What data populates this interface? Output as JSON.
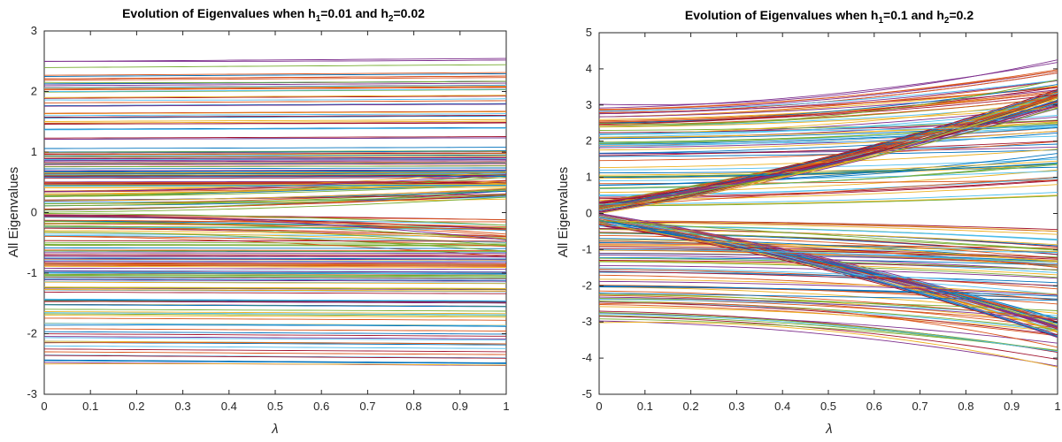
{
  "chart_data": [
    {
      "type": "line",
      "title_parts": {
        "pre": "Evolution of Eigenvalues when h",
        "sub1": "1",
        "mid": "=0.01 and h",
        "sub2": "2",
        "post": "=0.02"
      },
      "xlabel": "λ",
      "ylabel": "All Eigenvalues",
      "xlim": [
        0,
        1
      ],
      "ylim": [
        -3,
        3
      ],
      "xticks": [
        0,
        0.1,
        0.2,
        0.3,
        0.4,
        0.5,
        0.6,
        0.7,
        0.8,
        0.9,
        1
      ],
      "yticks": [
        -3,
        -2,
        -1,
        0,
        1,
        2,
        3
      ],
      "grid": false,
      "legend": "none",
      "x": [
        0,
        0.5,
        1
      ],
      "series_description": "~200 nearly horizontal eigenvalue curves distributed between -2.5 and 2.5, densest between -1 and 1",
      "sample_series": [
        {
          "values": [
            2.5,
            2.5,
            2.52
          ]
        },
        {
          "values": [
            2.15,
            2.15,
            2.17
          ]
        },
        {
          "values": [
            1.86,
            1.86,
            1.88
          ]
        },
        {
          "values": [
            1.47,
            1.47,
            1.48
          ]
        },
        {
          "values": [
            1.0,
            1.0,
            1.02
          ]
        },
        {
          "values": [
            0.5,
            0.5,
            0.52
          ]
        },
        {
          "values": [
            0.2,
            0.25,
            0.4
          ]
        },
        {
          "values": [
            -0.05,
            -0.15,
            -0.45
          ]
        },
        {
          "values": [
            -0.5,
            -0.5,
            -0.52
          ]
        },
        {
          "values": [
            -1.0,
            -1.0,
            -1.02
          ]
        },
        {
          "values": [
            -1.47,
            -1.47,
            -1.48
          ]
        },
        {
          "values": [
            -1.86,
            -1.86,
            -1.88
          ]
        },
        {
          "values": [
            -2.15,
            -2.15,
            -2.17
          ]
        },
        {
          "values": [
            -2.5,
            -2.5,
            -2.52
          ]
        }
      ]
    },
    {
      "type": "line",
      "title_parts": {
        "pre": "Evolution of Eigenvalues when h",
        "sub1": "1",
        "mid": "=0.1 and h",
        "sub2": "2",
        "post": "=0.2"
      },
      "xlabel": "λ",
      "ylabel": "All Eigenvalues",
      "xlim": [
        0,
        1
      ],
      "ylim": [
        -5,
        5
      ],
      "xticks": [
        0,
        0.1,
        0.2,
        0.3,
        0.4,
        0.5,
        0.6,
        0.7,
        0.8,
        0.9,
        1
      ],
      "yticks": [
        -5,
        -4,
        -3,
        -2,
        -1,
        0,
        1,
        2,
        3,
        4,
        5
      ],
      "grid": false,
      "legend": "none",
      "x": [
        0,
        0.5,
        1
      ],
      "series_description": "~200 eigenvalue curves symmetric about 0; one family fans out from 0 to about ±3.2, others drift outward from ±(0.2–3.0) to ±(1.0–4.3)",
      "sample_series": [
        {
          "values": [
            3.02,
            3.25,
            4.25
          ]
        },
        {
          "values": [
            2.5,
            2.7,
            3.7
          ]
        },
        {
          "values": [
            2.2,
            2.3,
            2.4
          ]
        },
        {
          "values": [
            1.6,
            1.75,
            2.0
          ]
        },
        {
          "values": [
            1.0,
            1.1,
            1.4
          ]
        },
        {
          "values": [
            0.2,
            0.6,
            1.0
          ]
        },
        {
          "values": [
            0.0,
            1.3,
            3.2
          ]
        },
        {
          "values": [
            0.0,
            -1.3,
            -3.2
          ]
        },
        {
          "values": [
            -0.2,
            -0.6,
            -1.0
          ]
        },
        {
          "values": [
            -1.0,
            -1.1,
            -1.4
          ]
        },
        {
          "values": [
            -1.6,
            -1.75,
            -2.0
          ]
        },
        {
          "values": [
            -2.2,
            -2.3,
            -2.4
          ]
        },
        {
          "values": [
            -2.5,
            -2.7,
            -3.7
          ]
        },
        {
          "values": [
            -3.02,
            -3.25,
            -4.25
          ]
        }
      ]
    }
  ]
}
